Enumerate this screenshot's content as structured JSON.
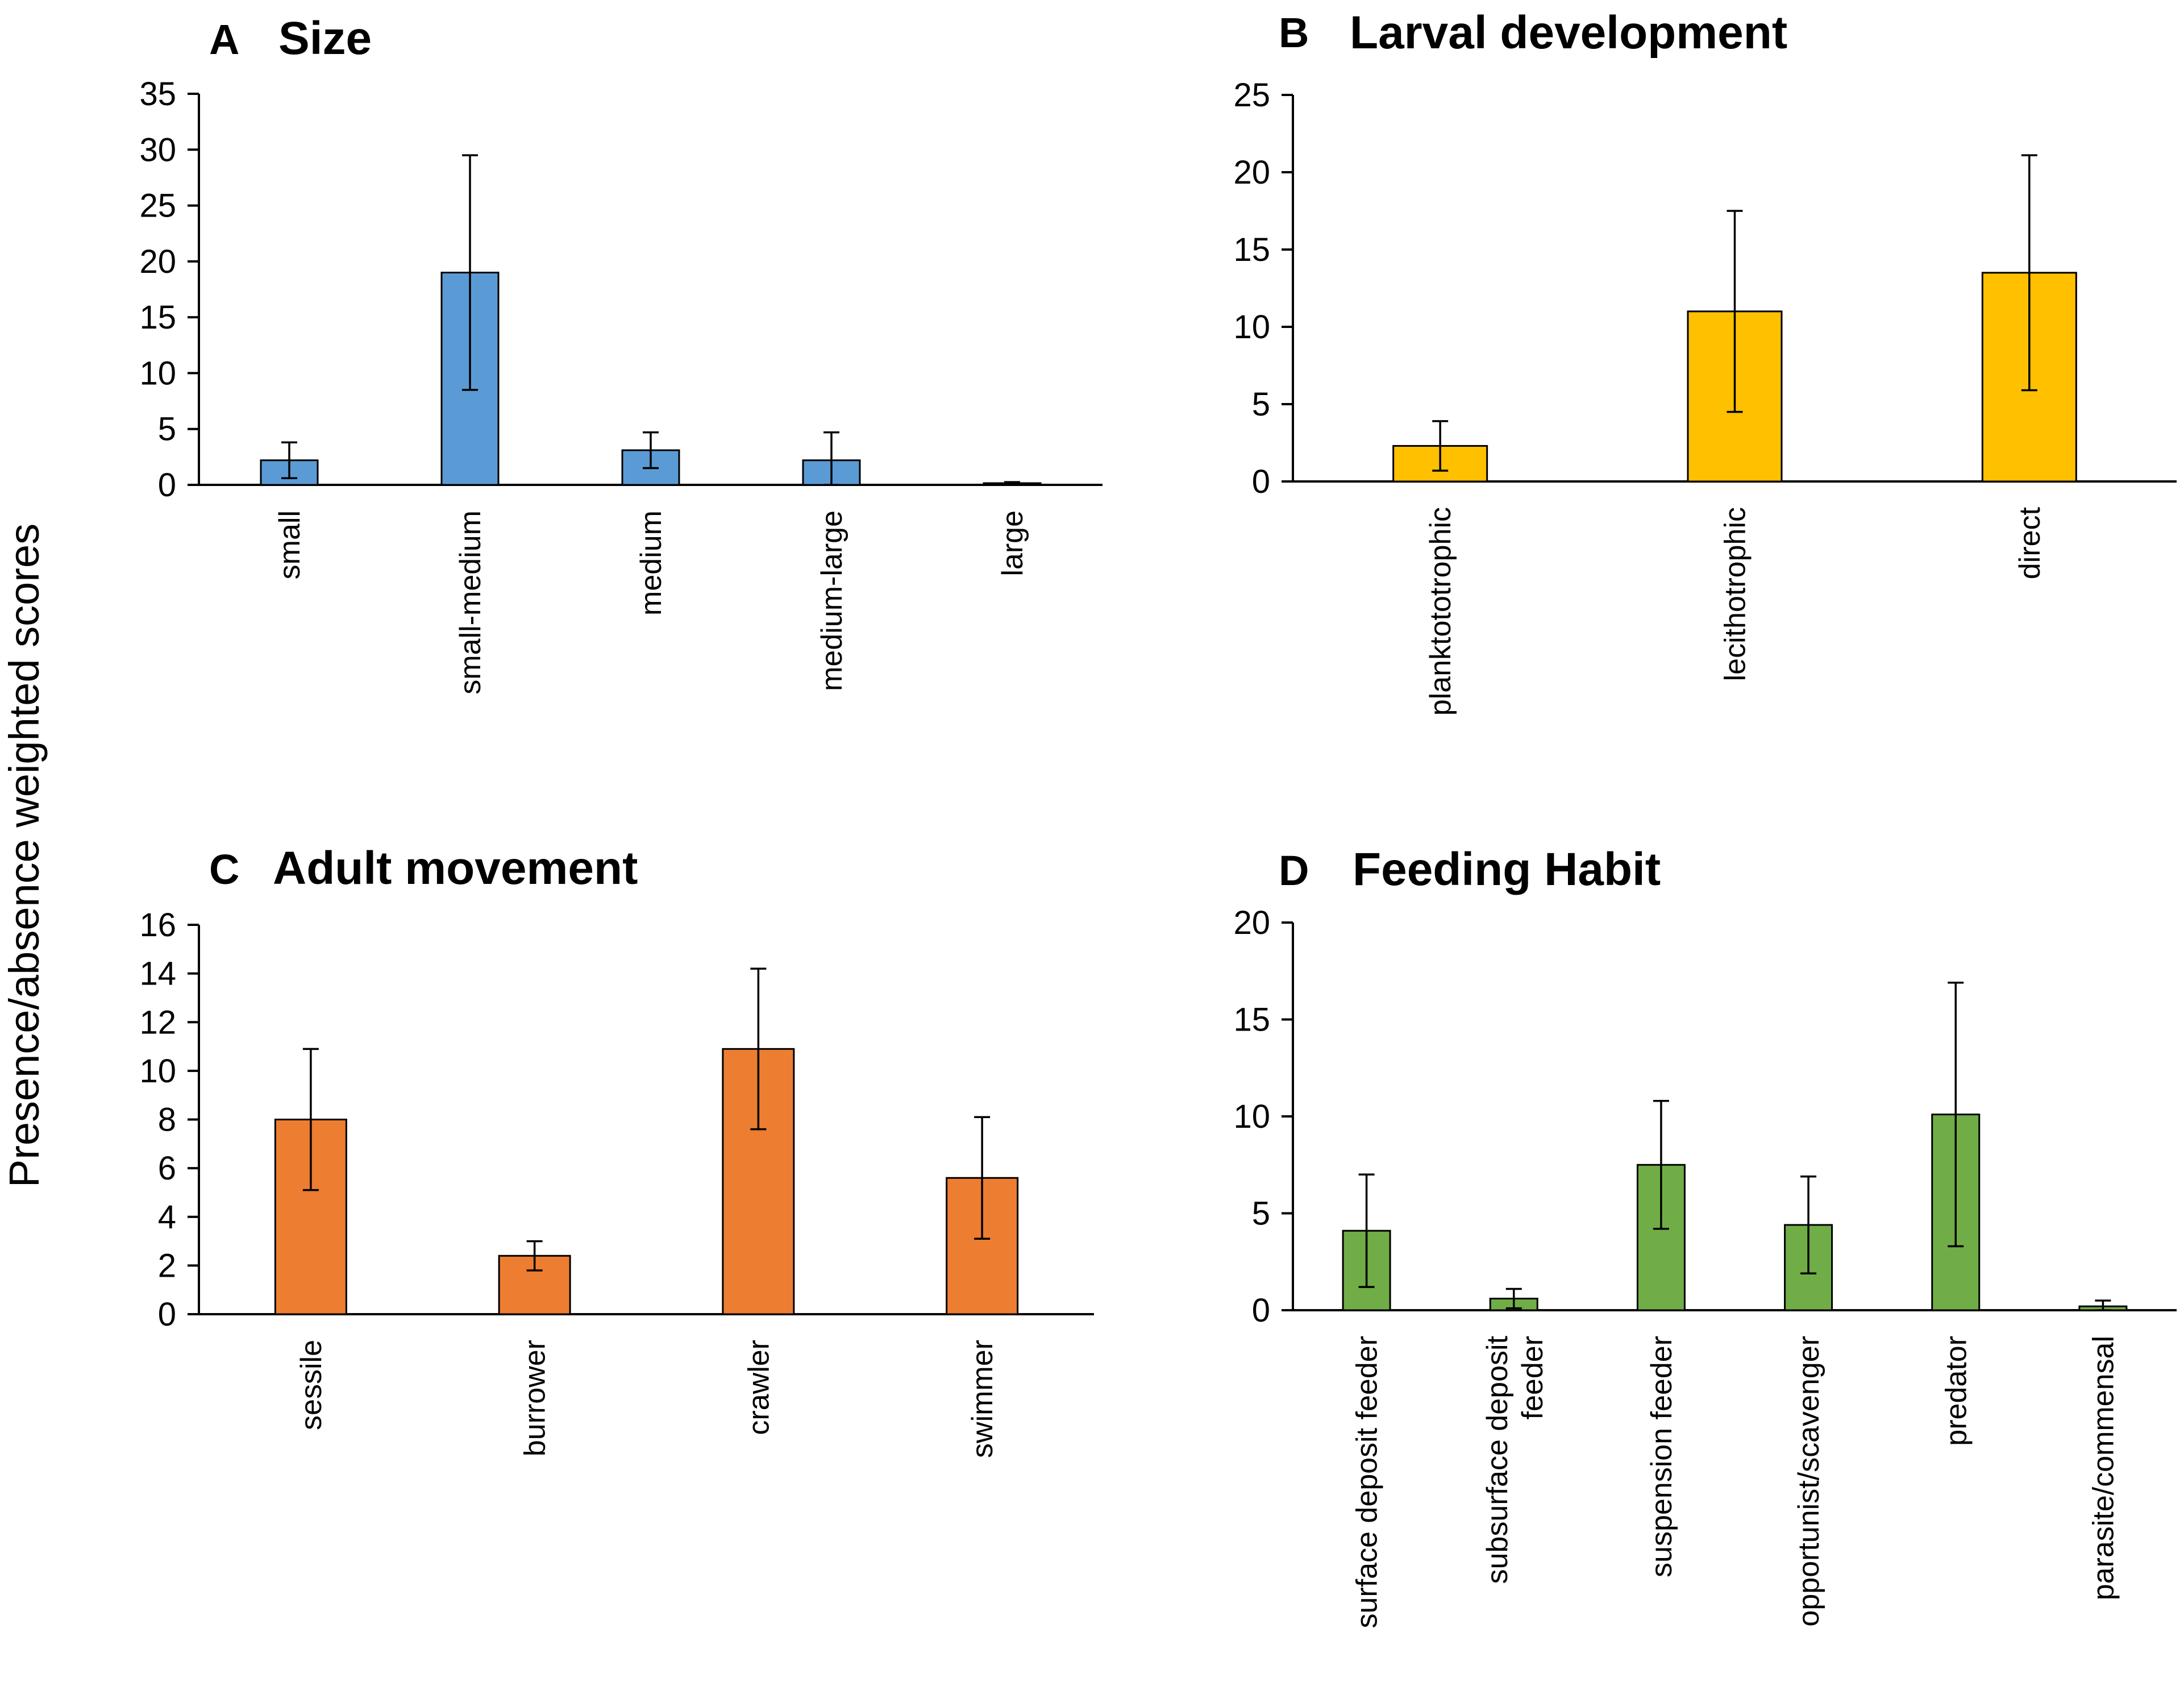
{
  "ylabel": "Presence/absence weighted scores",
  "chart_data": [
    {
      "type": "bar",
      "panel": "A",
      "title": "Size",
      "color": "#5B9BD5",
      "categories": [
        "small",
        "small-medium",
        "medium",
        "medium-large",
        "large"
      ],
      "values": [
        2.2,
        19.0,
        3.1,
        2.2,
        0.1
      ],
      "errors": [
        1.6,
        10.5,
        1.6,
        2.5,
        0.15
      ],
      "ylim": [
        0,
        35
      ],
      "yticks": [
        0,
        5,
        10,
        15,
        20,
        25,
        30,
        35
      ]
    },
    {
      "type": "bar",
      "panel": "B",
      "title": "Larval development",
      "color": "#FFC000",
      "categories": [
        "planktototrophic",
        "lecithotrophic",
        "direct"
      ],
      "values": [
        2.3,
        11.0,
        13.5
      ],
      "errors": [
        1.6,
        6.5,
        7.6
      ],
      "ylim": [
        0,
        25
      ],
      "yticks": [
        0,
        5,
        10,
        15,
        20,
        25
      ]
    },
    {
      "type": "bar",
      "panel": "C",
      "title": "Adult movement",
      "color": "#ED7D31",
      "categories": [
        "sessile",
        "burrower",
        "crawler",
        "swimmer"
      ],
      "values": [
        8.0,
        2.4,
        10.9,
        5.6
      ],
      "errors": [
        2.9,
        0.6,
        3.3,
        2.5
      ],
      "ylim": [
        0,
        16
      ],
      "yticks": [
        0,
        2,
        4,
        6,
        8,
        10,
        12,
        14,
        16
      ]
    },
    {
      "type": "bar",
      "panel": "D",
      "title": "Feeding Habit",
      "color": "#70AD47",
      "categories": [
        "surface deposit feeder",
        "subsurface deposit feeder",
        "suspension feeder",
        "opportunist/scavenger",
        "predator",
        "parasite/commensal"
      ],
      "values": [
        4.1,
        0.6,
        7.5,
        4.4,
        10.1,
        0.2
      ],
      "errors": [
        2.9,
        0.5,
        3.3,
        2.5,
        6.8,
        0.3
      ],
      "ylim": [
        0,
        20
      ],
      "yticks": [
        0,
        5,
        10,
        15,
        20
      ]
    }
  ]
}
